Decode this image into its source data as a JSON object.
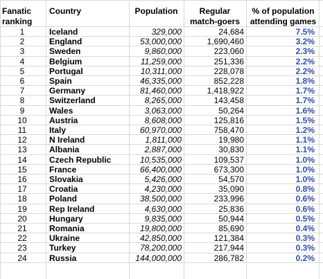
{
  "headers": {
    "rank": [
      "Fanatic",
      "ranking"
    ],
    "country": "Country",
    "population": "Population",
    "regular": [
      "Regular",
      "match-goers"
    ],
    "percent": [
      "% of population",
      "attending games"
    ]
  },
  "rows": [
    {
      "rank": "1",
      "country": "Iceland",
      "population": "329,000",
      "regular": "24,684",
      "percent": "7.5%"
    },
    {
      "rank": "2",
      "country": "England",
      "population": "53,000,000",
      "regular": "1,690,460",
      "percent": "3.2%"
    },
    {
      "rank": "3",
      "country": "Sweden",
      "population": "9,860,000",
      "regular": "223,060",
      "percent": "2.3%"
    },
    {
      "rank": "4",
      "country": "Belgium",
      "population": "11,259,000",
      "regular": "251,336",
      "percent": "2.2%"
    },
    {
      "rank": "5",
      "country": "Portugal",
      "population": "10,311,000",
      "regular": "228,078",
      "percent": "2.2%"
    },
    {
      "rank": "6",
      "country": "Spain",
      "population": "46,335,000",
      "regular": "852,228",
      "percent": "1.8%"
    },
    {
      "rank": "7",
      "country": "Germany",
      "population": "81,460,000",
      "regular": "1,418,922",
      "percent": "1.7%"
    },
    {
      "rank": "8",
      "country": "Switzerland",
      "population": "8,265,000",
      "regular": "143,458",
      "percent": "1.7%"
    },
    {
      "rank": "9",
      "country": "Wales",
      "population": "3,063,000",
      "regular": "50,264",
      "percent": "1.6%"
    },
    {
      "rank": "10",
      "country": "Austria",
      "population": "8,608,000",
      "regular": "125,816",
      "percent": "1.5%"
    },
    {
      "rank": "11",
      "country": "Italy",
      "population": "60,970,000",
      "regular": "758,470",
      "percent": "1.2%"
    },
    {
      "rank": "12",
      "country": "N Ireland",
      "population": "1,811,000",
      "regular": "19,980",
      "percent": "1.1%"
    },
    {
      "rank": "13",
      "country": "Albania",
      "population": "2,887,000",
      "regular": "30,830",
      "percent": "1.1%"
    },
    {
      "rank": "14",
      "country": "Czech Republic",
      "population": "10,535,000",
      "regular": "109,537",
      "percent": "1.0%"
    },
    {
      "rank": "15",
      "country": "France",
      "population": "66,400,000",
      "regular": "673,300",
      "percent": "1.0%"
    },
    {
      "rank": "16",
      "country": "Slovakia",
      "population": "5,426,000",
      "regular": "54,570",
      "percent": "1.0%"
    },
    {
      "rank": "17",
      "country": "Croatia",
      "population": "4,230,000",
      "regular": "35,090",
      "percent": "0.8%"
    },
    {
      "rank": "18",
      "country": "Poland",
      "population": "38,500,000",
      "regular": "233,996",
      "percent": "0.6%"
    },
    {
      "rank": "19",
      "country": "Rep Ireland",
      "population": "4,630,000",
      "regular": "25,836",
      "percent": "0.6%"
    },
    {
      "rank": "20",
      "country": "Hungary",
      "population": "9,835,000",
      "regular": "50,944",
      "percent": "0.5%"
    },
    {
      "rank": "21",
      "country": "Romania",
      "population": "19,800,000",
      "regular": "85,690",
      "percent": "0.4%"
    },
    {
      "rank": "22",
      "country": "Ukraine",
      "population": "42,850,000",
      "regular": "121,384",
      "percent": "0.3%"
    },
    {
      "rank": "23",
      "country": "Turkey",
      "population": "78,200,000",
      "regular": "217,944",
      "percent": "0.3%"
    },
    {
      "rank": "24",
      "country": "Russia",
      "population": "144,000,000",
      "regular": "286,782",
      "percent": "0.2%"
    }
  ],
  "colors": {
    "grid": "#d9d9d9",
    "percent_text": "#2f4ea8"
  }
}
